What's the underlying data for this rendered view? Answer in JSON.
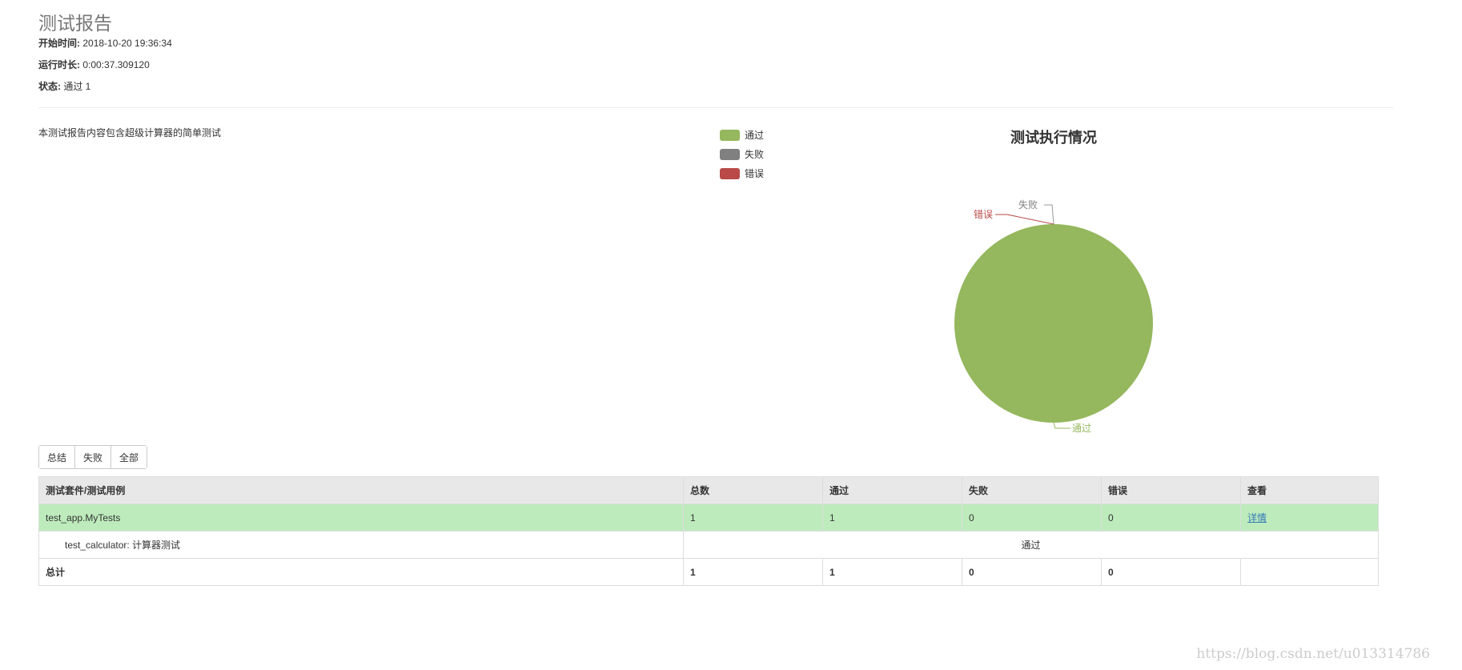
{
  "title": "测试报告",
  "meta": {
    "start_label": "开始时间:",
    "start": "2018-10-20 19:36:34",
    "duration_label": "运行时长:",
    "duration": "0:00:37.309120",
    "status_label": "状态:",
    "status": "通过 1"
  },
  "description": "本测试报告内容包含超级计算器的简单测试",
  "chart_data": {
    "type": "pie",
    "title": "测试执行情况",
    "legend_position": "top-left",
    "slices": [
      {
        "name": "通过",
        "value": 1,
        "color": "#95b75d"
      },
      {
        "name": "失败",
        "value": 0,
        "color": "#808080"
      },
      {
        "name": "错误",
        "value": 0,
        "color": "#b94a48"
      }
    ]
  },
  "buttons": [
    "总结",
    "失败",
    "全部"
  ],
  "table": {
    "headers": [
      "测试套件/测试用例",
      "总数",
      "通过",
      "失败",
      "错误",
      "查看"
    ],
    "suite": {
      "name": "test_app.MyTests",
      "total": "1",
      "pass": "1",
      "fail": "0",
      "error": "0",
      "link": "详情"
    },
    "case": {
      "name": "test_calculator: 计算器测试",
      "result": "通过"
    },
    "total": {
      "label": "总计",
      "total": "1",
      "pass": "1",
      "fail": "0",
      "error": "0"
    }
  },
  "watermark": "https://blog.csdn.net/u013314786"
}
